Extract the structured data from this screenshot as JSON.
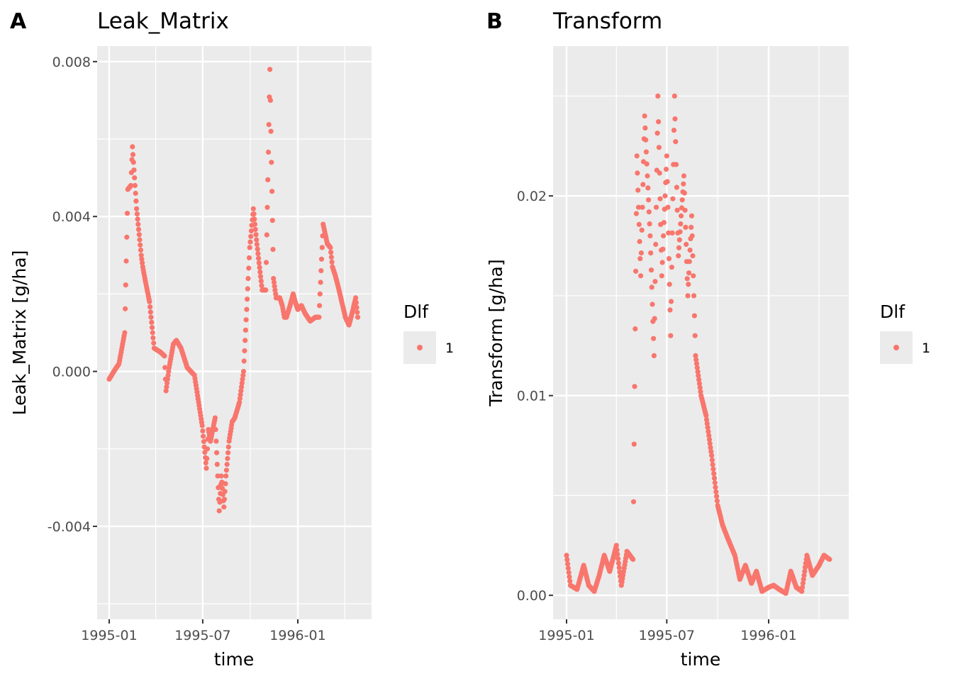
{
  "colors": {
    "panel_bg": "#ebebeb",
    "grid": "#ffffff",
    "point": "#f8766d",
    "tick_text": "#4d4d4d"
  },
  "chart_data": [
    {
      "tag": "A",
      "type": "scatter",
      "title": "Leak_Matrix",
      "xlabel": "time",
      "ylabel": "Leak_Matrix [g/ha]",
      "xticks": [
        "1995-01",
        "1995-07",
        "1996-01"
      ],
      "yticks": [
        "-0.004",
        "0.000",
        "0.004",
        "0.008"
      ],
      "ylim": [
        -0.0064,
        0.0084
      ],
      "legend": {
        "title": "Dlf",
        "entries": [
          "1"
        ],
        "position": "right"
      },
      "series": [
        {
          "name": "1",
          "x": [
            "1995-01-01",
            "1995-01-10",
            "1995-01-20",
            "1995-01-31",
            "1995-02-06",
            "1995-02-12",
            "1995-02-15",
            "1995-02-23",
            "1995-03-04",
            "1995-03-07",
            "1995-03-11",
            "1995-03-20",
            "1995-03-29",
            "1995-04-10",
            "1995-04-18",
            "1995-04-21",
            "1995-04-27",
            "1995-05-05",
            "1995-05-11",
            "1995-05-20",
            "1995-06-01",
            "1995-06-08",
            "1995-06-15",
            "1995-06-30",
            "1995-07-08",
            "1995-07-12",
            "1995-07-16",
            "1995-07-25",
            "1995-08-02",
            "1995-08-06",
            "1995-08-11",
            "1995-08-15",
            "1995-08-21",
            "1995-08-27",
            "1995-09-01",
            "1995-09-10",
            "1995-09-18",
            "1995-09-30",
            "1995-10-07",
            "1995-10-13",
            "1995-10-18",
            "1995-10-24",
            "1995-10-31",
            "1995-11-08",
            "1995-11-11",
            "1995-11-15",
            "1995-11-20",
            "1995-11-27",
            "1995-12-02",
            "1995-12-06",
            "1995-12-10",
            "1995-12-17",
            "1995-12-23",
            "1995-12-27",
            "1996-01-01",
            "1996-01-08",
            "1996-01-15",
            "1996-01-25",
            "1996-02-04",
            "1996-02-11",
            "1996-02-19",
            "1996-02-27",
            "1996-03-04",
            "1996-03-08",
            "1996-03-13",
            "1996-03-19",
            "1996-03-26",
            "1996-04-02",
            "1996-04-09",
            "1996-04-15",
            "1996-04-22",
            "1996-04-26"
          ],
          "values": [
            -0.0002,
            0.0,
            0.0002,
            0.001,
            0.0047,
            0.0048,
            0.0058,
            0.0042,
            0.003,
            0.0027,
            0.0024,
            0.0018,
            0.0006,
            0.0005,
            0.0004,
            -0.0005,
            0.0001,
            0.0007,
            0.0008,
            0.0006,
            0.0001,
            0.0,
            -0.0001,
            -0.0014,
            -0.0025,
            -0.0015,
            -0.0018,
            -0.0012,
            -0.0036,
            -0.0027,
            -0.0035,
            -0.0027,
            -0.0018,
            -0.0013,
            -0.0012,
            -0.0008,
            0.0,
            0.0032,
            0.0042,
            0.0034,
            0.0028,
            0.0021,
            0.0021,
            0.0078,
            0.0054,
            0.0024,
            0.0019,
            0.0019,
            0.0017,
            0.0014,
            0.0014,
            0.0017,
            0.002,
            0.0018,
            0.0016,
            0.0017,
            0.0015,
            0.0013,
            0.0014,
            0.0014,
            0.0038,
            0.0033,
            0.0032,
            0.0027,
            0.0025,
            0.0022,
            0.0018,
            0.0014,
            0.0012,
            0.0015,
            0.0019,
            0.0014
          ]
        }
      ],
      "grid": true
    },
    {
      "tag": "B",
      "type": "scatter",
      "title": "Transform",
      "xlabel": "time",
      "ylabel": "Transform [g/ha]",
      "xticks": [
        "1995-01",
        "1995-07",
        "1996-01"
      ],
      "yticks": [
        "0.00",
        "0.01",
        "0.02"
      ],
      "ylim": [
        -0.0012,
        0.0275
      ],
      "legend": {
        "title": "Dlf",
        "entries": [
          "1"
        ],
        "position": "right"
      },
      "series": [
        {
          "name": "1",
          "x": [
            "1995-01-01",
            "1995-01-08",
            "1995-01-20",
            "1995-02-01",
            "1995-02-10",
            "1995-02-20",
            "1995-03-01",
            "1995-03-10",
            "1995-03-20",
            "1995-04-01",
            "1995-04-10",
            "1995-04-20",
            "1995-05-01",
            "1995-05-08",
            "1995-05-15",
            "1995-05-22",
            "1995-06-01",
            "1995-06-08",
            "1995-06-15",
            "1995-06-22",
            "1995-07-01",
            "1995-07-08",
            "1995-07-15",
            "1995-07-22",
            "1995-08-01",
            "1995-08-08",
            "1995-08-15",
            "1995-08-22",
            "1995-09-01",
            "1995-09-10",
            "1995-09-20",
            "1995-10-01",
            "1995-10-10",
            "1995-10-20",
            "1995-11-01",
            "1995-11-10",
            "1995-11-20",
            "1995-12-01",
            "1995-12-10",
            "1995-12-20",
            "1996-01-01",
            "1996-01-10",
            "1996-01-20",
            "1996-02-01",
            "1996-02-10",
            "1996-02-20",
            "1996-03-01",
            "1996-03-10",
            "1996-03-20",
            "1996-04-01",
            "1996-04-10",
            "1996-04-20"
          ],
          "values": [
            0.002,
            0.0005,
            0.0003,
            0.0015,
            0.0005,
            0.0002,
            0.001,
            0.002,
            0.0012,
            0.0025,
            0.0005,
            0.0022,
            0.0018,
            0.022,
            0.016,
            0.024,
            0.018,
            0.012,
            0.025,
            0.016,
            0.022,
            0.013,
            0.025,
            0.017,
            0.021,
            0.015,
            0.019,
            0.012,
            0.01,
            0.009,
            0.007,
            0.0045,
            0.0035,
            0.0028,
            0.002,
            0.0008,
            0.0015,
            0.0006,
            0.0012,
            0.0002,
            0.0004,
            0.0005,
            0.0003,
            0.0001,
            0.0012,
            0.0004,
            0.0002,
            0.002,
            0.001,
            0.0015,
            0.002,
            0.0018
          ]
        }
      ],
      "grid": true
    }
  ]
}
